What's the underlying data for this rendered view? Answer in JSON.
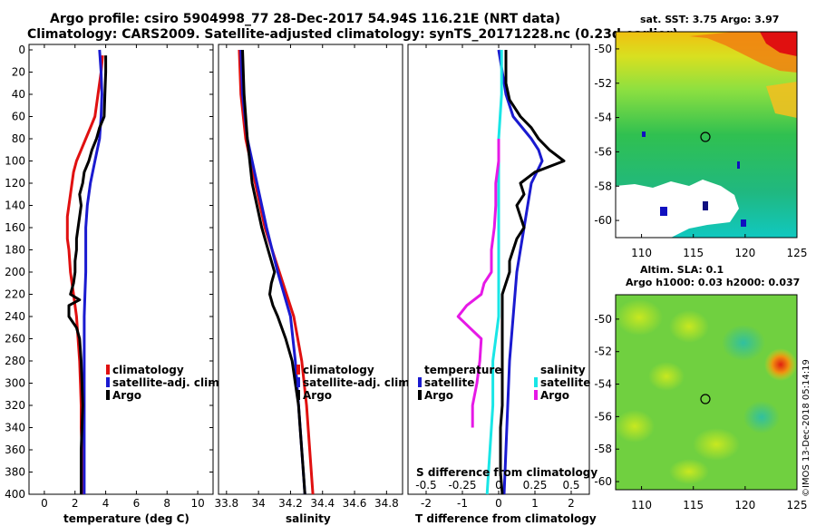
{
  "header": {
    "line1": "Argo profile: csiro 5904998_77 28-Dec-2017 54.94S 116.21E (NRT data)",
    "line2": "Climatology: CARS2009. Satellite-adjusted climatology: synTS_20171228.nc (0.23d earlier)"
  },
  "colors": {
    "climatology": "#e01010",
    "satellite": "#1a1ad0",
    "argo": "#000000",
    "sat_salinity": "#19e6e6",
    "argo_salinity": "#e619e6"
  },
  "chart_data": [
    {
      "type": "line",
      "panel": "temperature",
      "xlabel": "temperature (deg C)",
      "ylabel": "",
      "xlim": [
        -1,
        11
      ],
      "ylim": [
        400,
        0
      ],
      "xticks": [
        "0",
        "2",
        "4",
        "6",
        "8",
        "10"
      ],
      "yticks": [
        "0",
        "20",
        "40",
        "60",
        "80",
        "100",
        "120",
        "140",
        "160",
        "180",
        "200",
        "220",
        "240",
        "260",
        "280",
        "300",
        "320",
        "340",
        "360",
        "380",
        "400"
      ],
      "series": [
        {
          "name": "climatology",
          "key": "climatology",
          "depth": [
            5,
            20,
            40,
            60,
            70,
            80,
            90,
            100,
            110,
            120,
            130,
            140,
            150,
            160,
            170,
            180,
            200,
            220,
            240,
            260,
            280,
            300,
            320,
            340,
            360,
            380,
            400
          ],
          "values": [
            3.8,
            3.7,
            3.5,
            3.3,
            3.0,
            2.7,
            2.4,
            2.1,
            1.9,
            1.8,
            1.7,
            1.6,
            1.5,
            1.5,
            1.5,
            1.6,
            1.7,
            1.9,
            2.1,
            2.2,
            2.3,
            2.35,
            2.4,
            2.4,
            2.45,
            2.5,
            2.5
          ]
        },
        {
          "name": "satellite-adj. clim.",
          "key": "satellite",
          "depth": [
            0,
            20,
            40,
            60,
            80,
            100,
            120,
            140,
            160,
            180,
            200,
            220,
            240,
            260,
            280,
            300,
            320,
            340,
            360,
            380,
            400
          ],
          "values": [
            3.6,
            3.7,
            3.75,
            3.7,
            3.6,
            3.3,
            3.0,
            2.8,
            2.7,
            2.7,
            2.7,
            2.65,
            2.6,
            2.6,
            2.6,
            2.6,
            2.6,
            2.6,
            2.6,
            2.6,
            2.6
          ]
        },
        {
          "name": "Argo",
          "key": "argo",
          "depth": [
            5,
            20,
            40,
            60,
            70,
            80,
            90,
            100,
            110,
            120,
            130,
            140,
            150,
            160,
            170,
            180,
            190,
            200,
            210,
            220,
            225,
            230,
            240,
            250,
            260,
            280,
            300,
            320,
            340,
            360,
            380,
            400
          ],
          "values": [
            4.0,
            4.0,
            3.95,
            3.9,
            3.6,
            3.4,
            3.1,
            2.9,
            2.6,
            2.5,
            2.3,
            2.4,
            2.3,
            2.2,
            2.1,
            2.1,
            2.0,
            2.0,
            1.9,
            1.7,
            2.3,
            1.6,
            1.6,
            2.1,
            2.3,
            2.4,
            2.45,
            2.5,
            2.45,
            2.4,
            2.4,
            2.4
          ]
        }
      ],
      "legend": [
        "climatology",
        "satellite-adj. clim.",
        "Argo"
      ]
    },
    {
      "type": "line",
      "panel": "salinity",
      "xlabel": "salinity",
      "ylabel": "",
      "xlim": [
        33.75,
        34.9
      ],
      "ylim": [
        400,
        0
      ],
      "xticks": [
        "33.8",
        "34",
        "34.2",
        "34.4",
        "34.6",
        "34.8"
      ],
      "series": [
        {
          "name": "climatology",
          "key": "climatology",
          "depth": [
            0,
            40,
            80,
            120,
            160,
            200,
            240,
            280,
            320,
            360,
            400
          ],
          "values": [
            33.88,
            33.89,
            33.92,
            33.98,
            34.04,
            34.13,
            34.22,
            34.27,
            34.3,
            34.32,
            34.34
          ]
        },
        {
          "name": "satellite-adj. clim.",
          "key": "satellite",
          "depth": [
            0,
            40,
            80,
            120,
            160,
            200,
            240,
            280,
            320,
            360,
            400
          ],
          "values": [
            33.89,
            33.9,
            33.93,
            33.99,
            34.05,
            34.12,
            34.2,
            34.23,
            34.25,
            34.27,
            34.29
          ]
        },
        {
          "name": "Argo",
          "key": "argo",
          "depth": [
            0,
            40,
            80,
            120,
            160,
            180,
            200,
            210,
            220,
            230,
            240,
            260,
            280,
            300,
            320,
            340,
            360,
            380,
            400
          ],
          "values": [
            33.9,
            33.91,
            33.93,
            33.96,
            34.02,
            34.06,
            34.1,
            34.08,
            34.07,
            34.09,
            34.12,
            34.17,
            34.21,
            34.23,
            34.25,
            34.26,
            34.27,
            34.28,
            34.29
          ]
        }
      ],
      "legend": [
        "climatology",
        "satellite-adj. clim.",
        "Argo"
      ]
    },
    {
      "type": "line",
      "panel": "difference",
      "xlabel": "T difference from climatology",
      "xlabel_top": "S difference from climatology",
      "xlim": [
        -2.5,
        2.5
      ],
      "ylim": [
        400,
        0
      ],
      "xticks": [
        "-2",
        "-1",
        "0",
        "1",
        "2"
      ],
      "xticks_top": [
        "-0.5",
        "-0.25",
        "0",
        "0.25",
        "0.5"
      ],
      "series": [
        {
          "name": "temperature satellite",
          "key": "satellite",
          "depth": [
            0,
            40,
            60,
            80,
            90,
            100,
            120,
            140,
            160,
            180,
            200,
            240,
            280,
            320,
            360,
            400
          ],
          "values": [
            0.0,
            0.2,
            0.4,
            0.9,
            1.1,
            1.2,
            0.9,
            0.8,
            0.7,
            0.6,
            0.5,
            0.4,
            0.3,
            0.25,
            0.2,
            0.15
          ]
        },
        {
          "name": "temperature Argo",
          "key": "argo",
          "depth": [
            0,
            30,
            45,
            60,
            70,
            80,
            90,
            100,
            110,
            120,
            130,
            140,
            150,
            160,
            170,
            180,
            190,
            200,
            220,
            240,
            260,
            280,
            300,
            320,
            340,
            360,
            380,
            400
          ],
          "values": [
            0.2,
            0.2,
            0.3,
            0.6,
            0.9,
            1.1,
            1.4,
            1.8,
            1.0,
            0.6,
            0.7,
            0.5,
            0.6,
            0.7,
            0.5,
            0.4,
            0.3,
            0.3,
            0.1,
            0.1,
            0.1,
            0.1,
            0.1,
            0.1,
            0.05,
            0.05,
            0.05,
            0.1
          ]
        },
        {
          "name": "salinity satellite",
          "key": "sat_salinity",
          "depth": [
            0,
            40,
            80,
            120,
            160,
            200,
            240,
            280,
            320,
            360,
            400
          ],
          "values": [
            0.02,
            0.02,
            0.0,
            0.0,
            0.0,
            0.0,
            0.0,
            -0.04,
            -0.04,
            -0.06,
            -0.08
          ]
        },
        {
          "name": "salinity Argo",
          "key": "argo_salinity",
          "depth": [
            80,
            100,
            120,
            140,
            160,
            180,
            200,
            210,
            220,
            230,
            240,
            250,
            260,
            280,
            300,
            320,
            340
          ],
          "values": [
            0.0,
            0.0,
            -0.02,
            -0.02,
            -0.03,
            -0.05,
            -0.05,
            -0.1,
            -0.12,
            -0.22,
            -0.28,
            -0.2,
            -0.12,
            -0.13,
            -0.15,
            -0.18,
            -0.18
          ]
        }
      ],
      "legend_temperature": {
        "title": "temperature",
        "items": [
          "satellite",
          "Argo"
        ]
      },
      "legend_salinity": {
        "title": "salinity",
        "items": [
          "satellite",
          "Argo"
        ]
      }
    },
    {
      "type": "heatmap",
      "panel": "sst-map",
      "title": "sat. SST: 3.75 Argo: 3.97",
      "xlim": [
        107.5,
        125
      ],
      "ylim": [
        -61,
        -49
      ],
      "xticks": [
        "110",
        "115",
        "120",
        "125"
      ],
      "yticks": [
        "-50",
        "-52",
        "-54",
        "-56",
        "-58",
        "-60"
      ],
      "marker": {
        "lon": 116.21,
        "lat": -54.94
      }
    },
    {
      "type": "heatmap",
      "panel": "sla-map",
      "title_line1": "Altim. SLA: 0.1",
      "title_line2": "Argo h1000: 0.03 h2000: 0.037",
      "xlim": [
        107.5,
        125
      ],
      "ylim": [
        -60.5,
        -48.5
      ],
      "xticks": [
        "110",
        "115",
        "120",
        "125"
      ],
      "yticks": [
        "-50",
        "-52",
        "-54",
        "-56",
        "-58",
        "-60"
      ],
      "marker": {
        "lon": 116.21,
        "lat": -54.94
      }
    }
  ],
  "watermark": "©IMOS 13-Dec-2018 05:14:19"
}
